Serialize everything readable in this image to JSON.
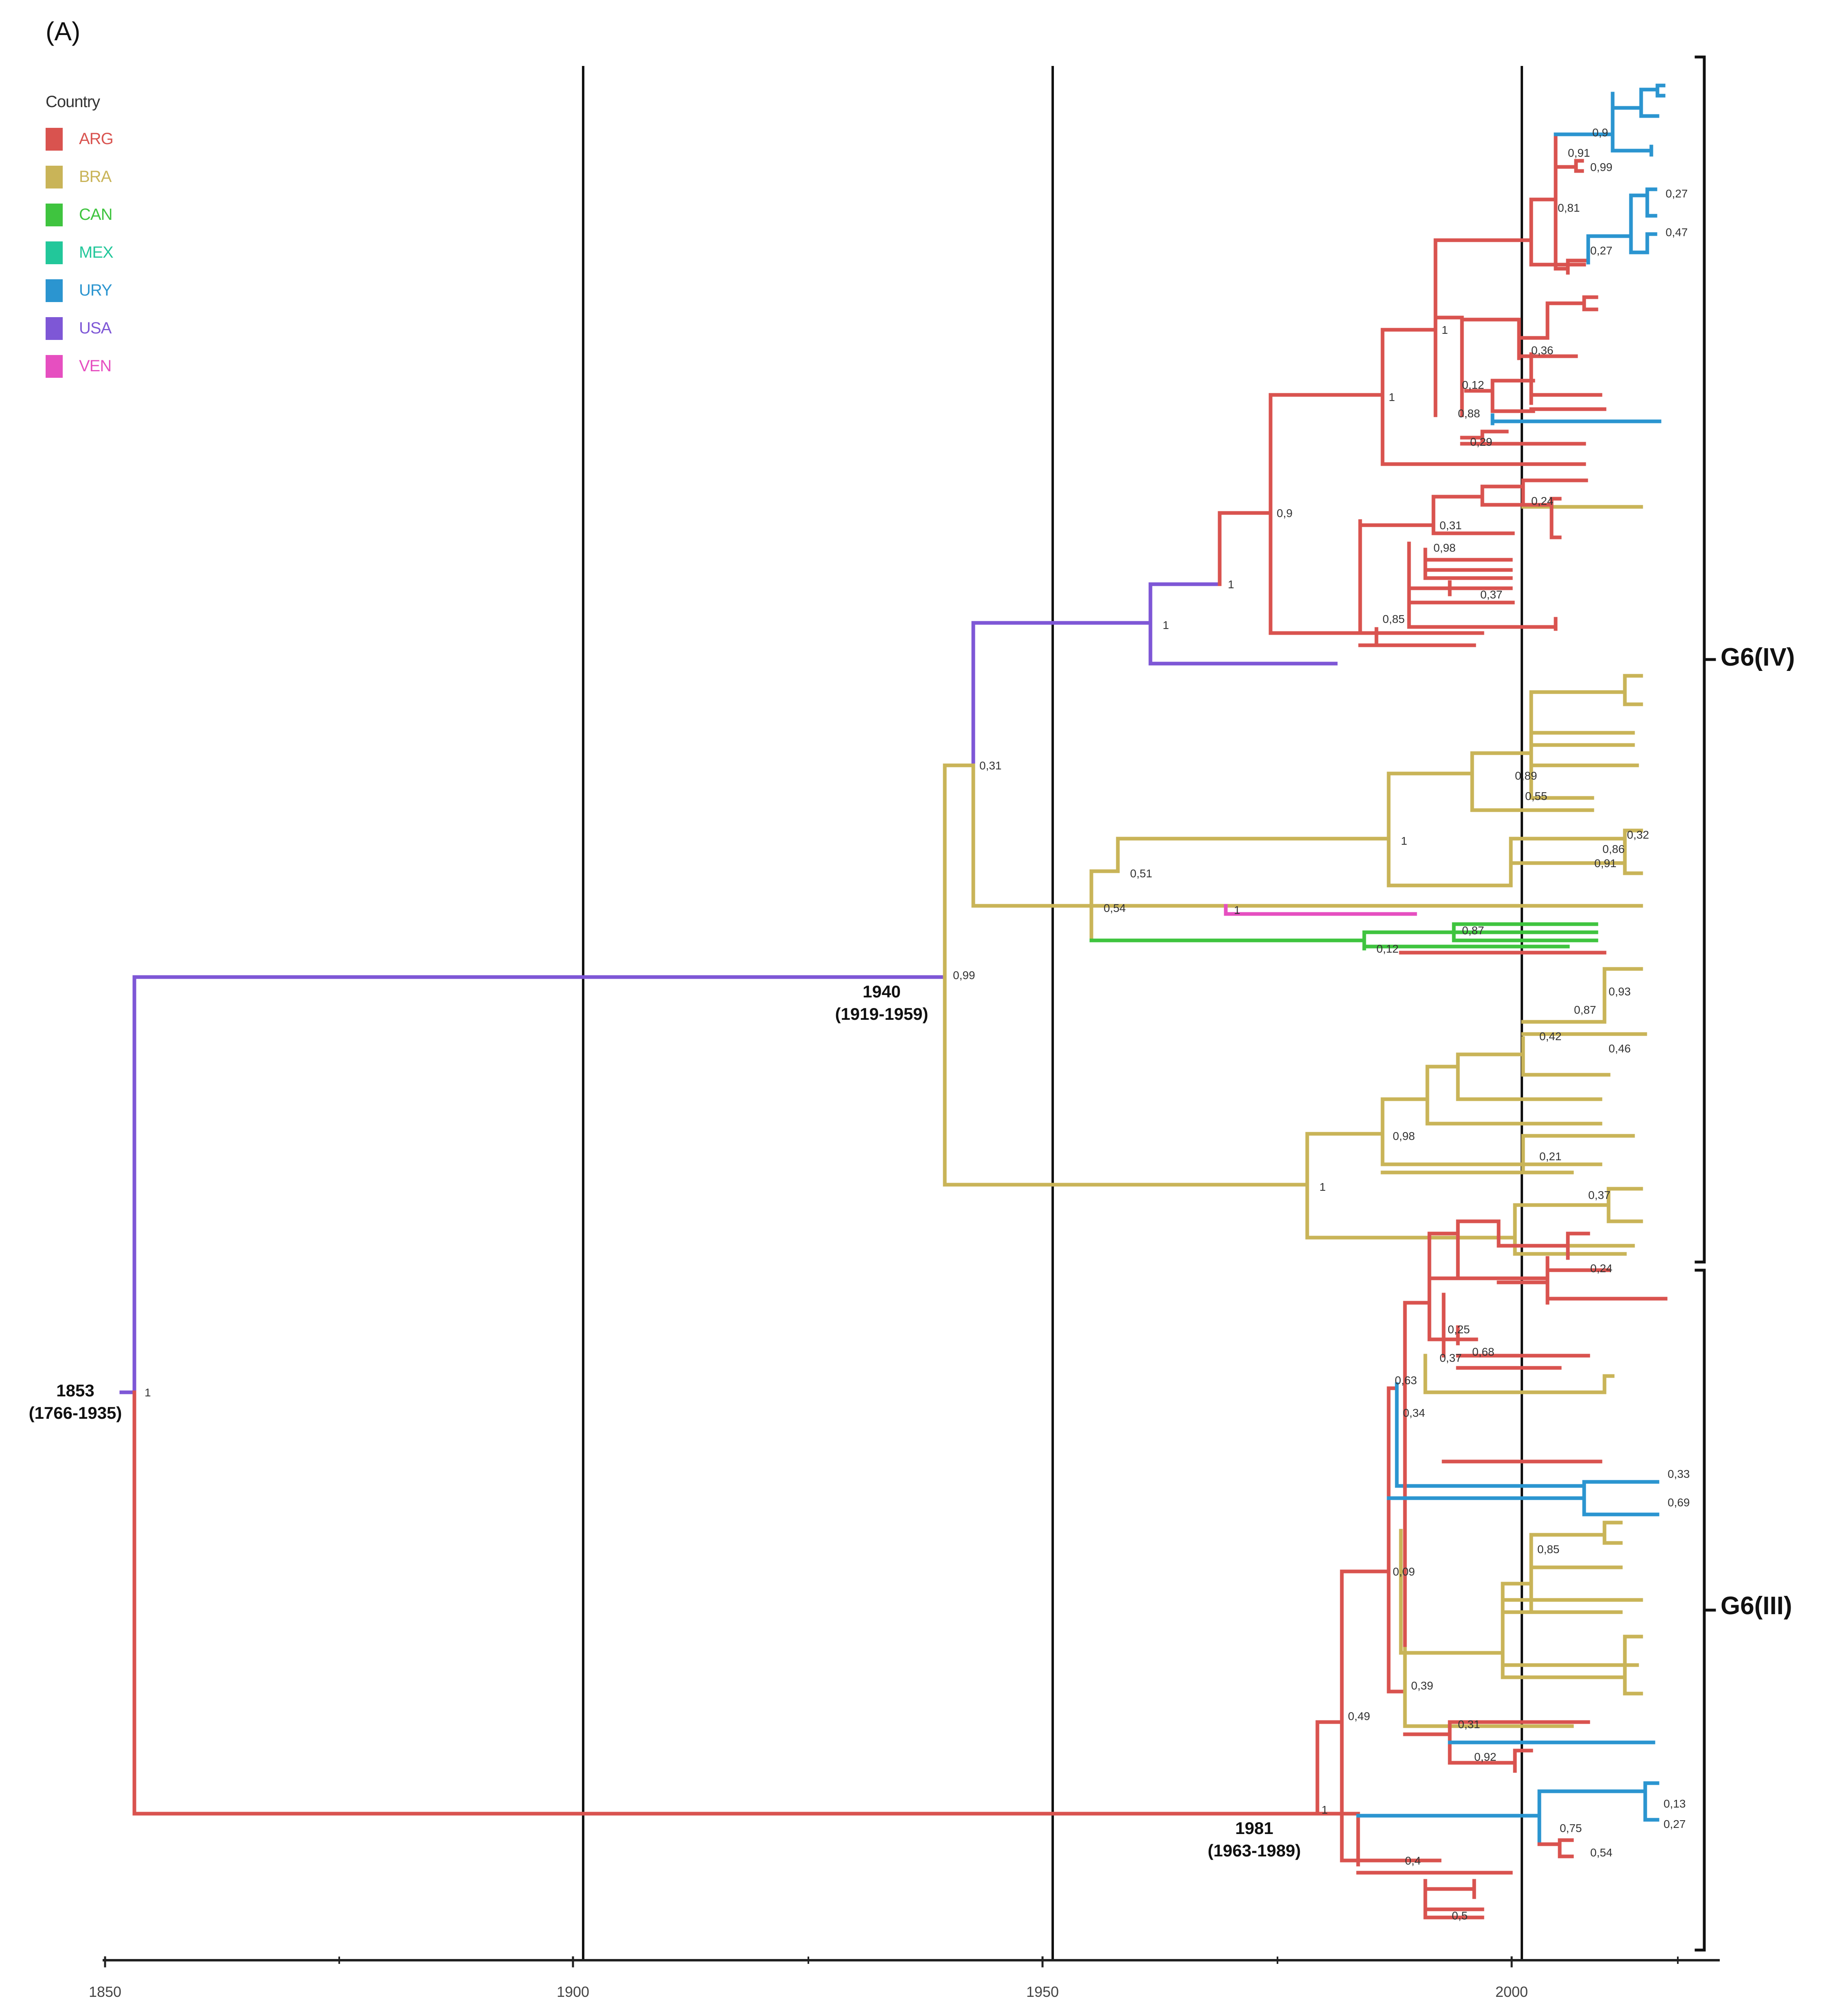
{
  "panel_label": "(A)",
  "legend": {
    "title": "Country",
    "items": [
      {
        "code": "ARG",
        "color": "#d9534f"
      },
      {
        "code": "BRA",
        "color": "#c9b458"
      },
      {
        "code": "CAN",
        "color": "#3fc43f"
      },
      {
        "code": "MEX",
        "color": "#22c79a"
      },
      {
        "code": "URY",
        "color": "#2b95d0"
      },
      {
        "code": "USA",
        "color": "#7e57d6"
      },
      {
        "code": "VEN",
        "color": "#e64fc0"
      }
    ]
  },
  "axis": {
    "ticks": [
      "1850",
      "1900",
      "1950",
      "2000"
    ]
  },
  "date_annotations": {
    "root": {
      "year": "1853",
      "hpd": "(1766-1935)"
    },
    "g6iv_clade": {
      "year": "1940",
      "hpd": "(1919-1959)"
    },
    "g6iii_clade": {
      "year": "1981",
      "hpd": "(1963-1989)"
    }
  },
  "clades": {
    "upper": "G6(IV)",
    "lower": "G6(III)"
  },
  "posterior_labels": {
    "root": "1",
    "g6iv_root": "0,99",
    "usa_split": "0,31",
    "usa_inner": "1",
    "usa_inner2": "1",
    "arg_main": "0,9",
    "arg_sub": "1",
    "arg_top": "1",
    "arg_top_inner": "0,81",
    "ury_a": "0,9",
    "ury_b": "0,91",
    "arg_leaf": "0,99",
    "arg_27": "0,27",
    "bra_big": "1",
    "bra_51": "0,51",
    "bra_54": "0,54",
    "ven_1": "1",
    "can_87": "0,87",
    "can_12": "0,12",
    "bra_lower": "1",
    "bra_98": "0,98",
    "g6iii_root": "1",
    "g6iii_49": "0,49",
    "g6iii_09": "0,09",
    "g6iii_39": "0,39",
    "g6iii_34": "0,34",
    "g6iii_63": "0,63",
    "g6iii_25": "0,25",
    "g6iii_37": "0,37",
    "g6iii_68": "0,68",
    "g6iii_4": "0,4",
    "g6iii_75": "0,75",
    "g6iii_54": "0,54",
    "g6iii_5": "0,5",
    "g6iii_85": "0,85",
    "g6iii_33": "0,33",
    "g6iii_69": "0,69",
    "g6iii_31": "0,31",
    "g6iii_92": "0,92",
    "g6iii_24": "0,24",
    "g6iii_13": "0,13",
    "g6iii_27": "0,27",
    "bra_89": "0,89",
    "bra_55": "0,55",
    "bra_86": "0,86",
    "bra_32": "0,32",
    "bra_91": "0,91",
    "bra_42": "0,42",
    "bra_87": "0,87",
    "bra_93": "0,93",
    "bra_46": "0,46",
    "bra_21": "0,21",
    "bra_37": "0,37",
    "arg_85": "0,85",
    "arg_31": "0,31",
    "arg_98": "0,98",
    "arg_37": "0,37",
    "arg_36": "0,36",
    "arg_12": "0,12",
    "arg_88": "0,88",
    "arg_29": "0,29",
    "arg_24": "0,24",
    "ury_47": "0,47",
    "ury_27": "0,27"
  }
}
